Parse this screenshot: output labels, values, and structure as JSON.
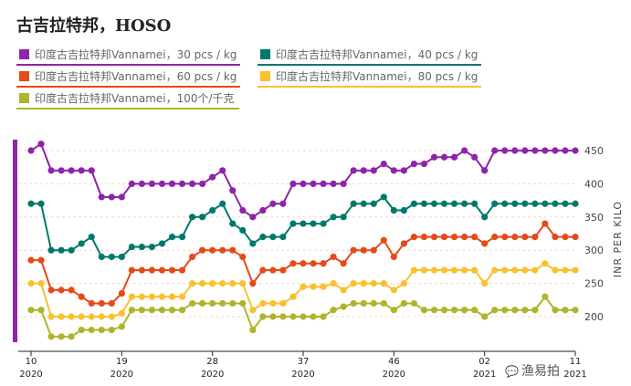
{
  "title": "古吉拉特邦，HOSO",
  "watermark": "渔易拍",
  "chart_data": {
    "type": "line",
    "title": "古吉拉特邦，HOSO",
    "ylabel": "INR PER KILO",
    "xlabel": "",
    "ylim": [
      170,
      460
    ],
    "yticks": [
      "200",
      "250",
      "300",
      "350",
      "400",
      "450"
    ],
    "ytick_values": [
      200,
      250,
      300,
      350,
      400,
      450
    ],
    "grid": true,
    "legend_placement": "top",
    "x_count": 55,
    "x_start": "Week 10 2020",
    "x_end": "Week 11 2021",
    "xticks": [
      {
        "index": 0,
        "week": "10",
        "year": "2020"
      },
      {
        "index": 9,
        "week": "19",
        "year": "2020"
      },
      {
        "index": 18,
        "week": "28",
        "year": "2020"
      },
      {
        "index": 27,
        "week": "37",
        "year": "2020"
      },
      {
        "index": 36,
        "week": "46",
        "year": "2020"
      },
      {
        "index": 45,
        "week": "02",
        "year": "2021"
      },
      {
        "index": 54,
        "week": "11",
        "year": "2021"
      }
    ],
    "series": [
      {
        "name": "印度古吉拉特邦Vannamei，30 pcs / kg",
        "color": "#8e24aa",
        "values": [
          450,
          460,
          420,
          420,
          420,
          420,
          420,
          380,
          380,
          380,
          400,
          400,
          400,
          400,
          400,
          400,
          400,
          400,
          410,
          420,
          390,
          360,
          350,
          360,
          370,
          370,
          400,
          400,
          400,
          400,
          400,
          400,
          420,
          420,
          420,
          430,
          420,
          420,
          430,
          430,
          440,
          440,
          440,
          450,
          440,
          420,
          450,
          450,
          450,
          450,
          450,
          450,
          450,
          450,
          450
        ]
      },
      {
        "name": "印度古吉拉特邦Vannamei，40 pcs / kg",
        "color": "#00796b",
        "values": [
          370,
          370,
          300,
          300,
          300,
          310,
          320,
          290,
          290,
          290,
          305,
          305,
          305,
          310,
          320,
          320,
          350,
          350,
          360,
          370,
          340,
          330,
          310,
          320,
          320,
          320,
          340,
          340,
          340,
          340,
          350,
          350,
          370,
          370,
          370,
          380,
          360,
          360,
          370,
          370,
          370,
          370,
          370,
          370,
          370,
          350,
          370,
          370,
          370,
          370,
          370,
          370,
          370,
          370,
          370
        ]
      },
      {
        "name": "印度古吉拉特邦Vannamei，60 pcs / kg",
        "color": "#e64a19",
        "values": [
          285,
          285,
          240,
          240,
          240,
          230,
          220,
          220,
          220,
          235,
          270,
          270,
          270,
          270,
          270,
          270,
          290,
          300,
          300,
          300,
          300,
          290,
          250,
          270,
          270,
          270,
          280,
          280,
          280,
          280,
          290,
          280,
          300,
          300,
          300,
          315,
          290,
          310,
          320,
          320,
          320,
          320,
          320,
          320,
          320,
          310,
          320,
          320,
          320,
          320,
          320,
          340,
          320,
          320,
          320
        ]
      },
      {
        "name": "印度古吉拉特邦Vannamei，80 pcs / kg",
        "color": "#fbc02d",
        "values": [
          250,
          250,
          200,
          200,
          200,
          200,
          200,
          200,
          200,
          205,
          230,
          230,
          230,
          230,
          230,
          230,
          250,
          250,
          250,
          250,
          250,
          250,
          210,
          220,
          220,
          220,
          230,
          245,
          245,
          245,
          250,
          240,
          250,
          250,
          250,
          250,
          240,
          250,
          270,
          270,
          270,
          270,
          270,
          270,
          270,
          250,
          270,
          270,
          270,
          270,
          270,
          280,
          270,
          270,
          270
        ]
      },
      {
        "name": "印度古吉拉特邦Vannamei，100个/千克",
        "color": "#afb42b",
        "values": [
          210,
          210,
          170,
          170,
          170,
          180,
          180,
          180,
          180,
          185,
          210,
          210,
          210,
          210,
          210,
          210,
          220,
          220,
          220,
          220,
          220,
          220,
          180,
          200,
          200,
          200,
          200,
          200,
          200,
          200,
          210,
          215,
          220,
          220,
          220,
          220,
          210,
          220,
          220,
          210,
          210,
          210,
          210,
          210,
          210,
          200,
          210,
          210,
          210,
          210,
          210,
          230,
          210,
          210,
          210
        ]
      }
    ]
  }
}
